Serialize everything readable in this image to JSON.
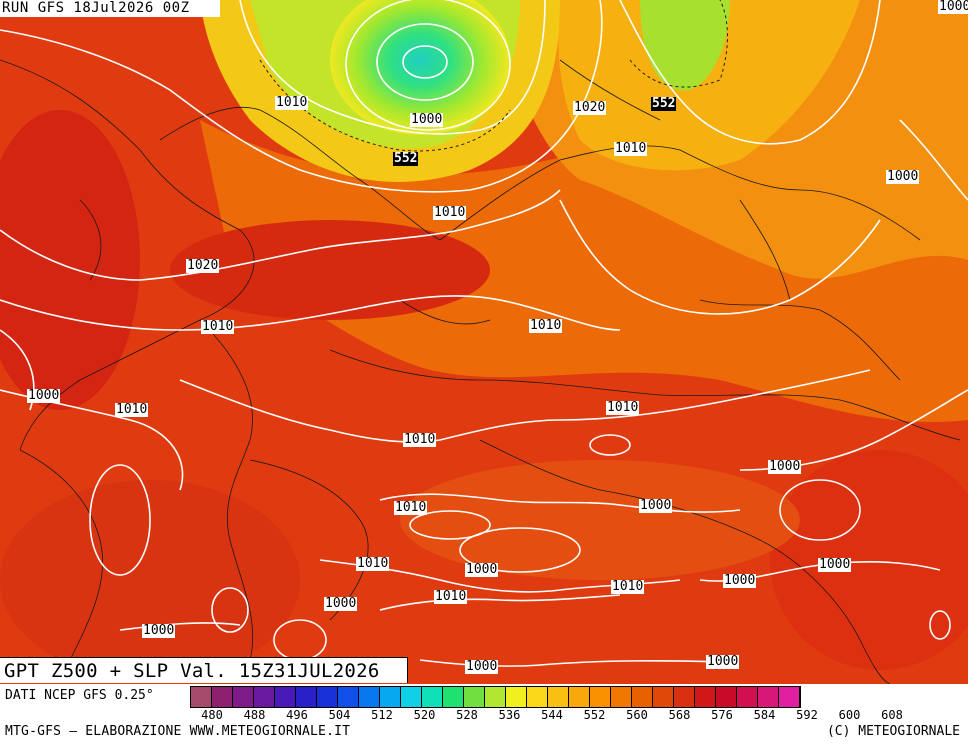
{
  "header": {
    "run_label": "RUN GFS 18Jul2026 00Z"
  },
  "title": {
    "valid_label": "GPT Z500 + SLP Val. 15Z31JUL2026"
  },
  "footer": {
    "data_source": "DATI NCEP GFS 0.25°",
    "credit": "MTG-GFS — ELABORAZIONE WWW.METEOGIORNALE.IT",
    "copyright": "(C) METEOGIORNALE"
  },
  "legend": {
    "colors": [
      "#a44a6a",
      "#8e2070",
      "#7d1c88",
      "#6a1aa0",
      "#4a1ab8",
      "#2a20c8",
      "#1830d8",
      "#1050e8",
      "#0878f0",
      "#08a8f0",
      "#10d0e8",
      "#10e0b8",
      "#20e070",
      "#70e040",
      "#b0e830",
      "#f0f020",
      "#f8d818",
      "#f8c010",
      "#f8a808",
      "#f89000",
      "#f07800",
      "#e86000",
      "#e04808",
      "#d83010",
      "#d01818",
      "#c80c28",
      "#d01050",
      "#d81878",
      "#e020a0"
    ],
    "ticks": [
      "480",
      "488",
      "496",
      "504",
      "512",
      "520",
      "528",
      "536",
      "544",
      "552",
      "560",
      "568",
      "576",
      "584",
      "592",
      "600",
      "608"
    ]
  },
  "map": {
    "isobar_labels": [
      "1010",
      "1020",
      "1000",
      "1010",
      "1010",
      "1000",
      "1020",
      "1010",
      "1010",
      "1010",
      "1000",
      "1010",
      "1010",
      "1010",
      "1000",
      "1000",
      "1010",
      "1000",
      "1010",
      "1000",
      "1000",
      "1000",
      "1000",
      "1010",
      "1000",
      "1000",
      "1000"
    ],
    "geopotential_labels": [
      "552",
      "552"
    ]
  }
}
